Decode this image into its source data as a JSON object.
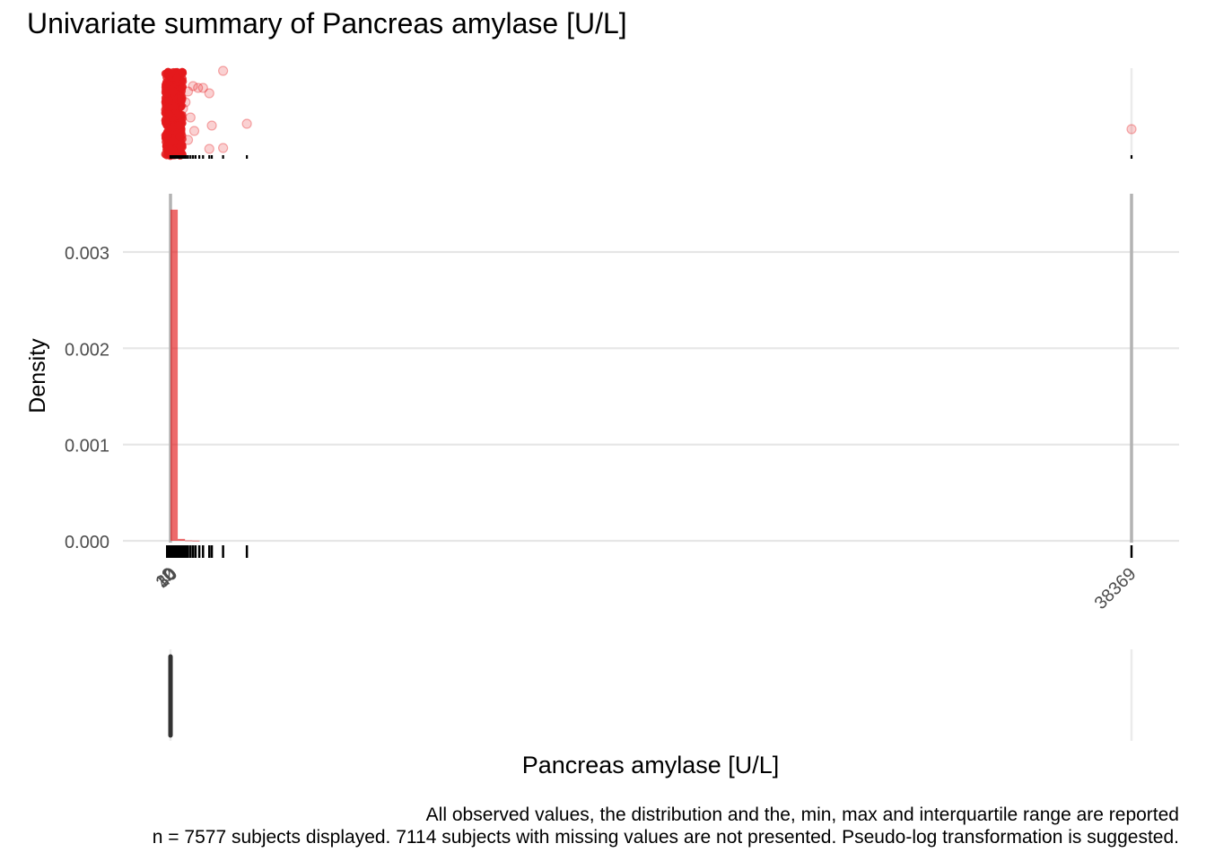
{
  "title": "Univariate summary of Pancreas amylase [U/L]",
  "caption": {
    "line1": "All observed values, the distribution and the, min, max and interquartile range are reported",
    "line2": "n = 7577 subjects displayed. 7114 subjects with missing values are not presented. Pseudo-log transformation is suggested."
  },
  "colors": {
    "accent": "#E41A1C",
    "grid": "#e6e6e6",
    "refline": "#b3b3b3",
    "rug": "#000000",
    "boxplot": "#333333",
    "text": "#4d4d4d"
  },
  "chart_data": {
    "type": "histogram",
    "xlabel": "Pancreas amylase [U/L]",
    "ylabel": "Density",
    "xlim": [
      0,
      38369
    ],
    "ylim": [
      0,
      0.0036
    ],
    "y_ticks": [
      {
        "value": 0,
        "label": "0.000"
      },
      {
        "value": 0.001,
        "label": "0.001"
      },
      {
        "value": 0.002,
        "label": "0.002"
      },
      {
        "value": 0.003,
        "label": "0.003"
      }
    ],
    "x_ticks": [
      {
        "value": 10,
        "label": "2"
      },
      {
        "value": 30,
        "label": "10"
      },
      {
        "value": 60,
        "label": "30"
      },
      {
        "value": 100,
        "label": "40"
      },
      {
        "value": 38369,
        "label": "38369"
      }
    ],
    "reference_lines": [
      0,
      38369
    ],
    "bins": [
      {
        "x0": 0,
        "x1": 290,
        "density": 0.00344
      },
      {
        "x0": 290,
        "x1": 580,
        "density": 2e-05
      },
      {
        "x0": 580,
        "x1": 870,
        "density": 4e-06
      },
      {
        "x0": 870,
        "x1": 1160,
        "density": 2e-06
      }
    ],
    "rug_values": [
      0,
      20,
      40,
      60,
      80,
      100,
      130,
      160,
      190,
      220,
      260,
      300,
      340,
      380,
      420,
      460,
      500,
      560,
      620,
      700,
      800,
      900,
      1000,
      1150,
      1300,
      1550,
      1650,
      2100,
      3050,
      38369
    ],
    "jitter_points": [
      {
        "x": 2100,
        "y": 0.97
      },
      {
        "x": 1550,
        "y": 0.72
      },
      {
        "x": 1300,
        "y": 0.78
      },
      {
        "x": 1100,
        "y": 0.78
      },
      {
        "x": 900,
        "y": 0.8
      },
      {
        "x": 700,
        "y": 0.74
      },
      {
        "x": 600,
        "y": 0.62
      },
      {
        "x": 500,
        "y": 0.55
      },
      {
        "x": 800,
        "y": 0.45
      },
      {
        "x": 1650,
        "y": 0.36
      },
      {
        "x": 3050,
        "y": 0.38
      },
      {
        "x": 950,
        "y": 0.3
      },
      {
        "x": 700,
        "y": 0.2
      },
      {
        "x": 1550,
        "y": 0.1
      },
      {
        "x": 2100,
        "y": 0.11
      },
      {
        "x": 38369,
        "y": 0.32
      }
    ],
    "boxplot": {
      "min": 0,
      "q1": 30,
      "median": 55,
      "q3": 80,
      "max": 38369
    }
  }
}
